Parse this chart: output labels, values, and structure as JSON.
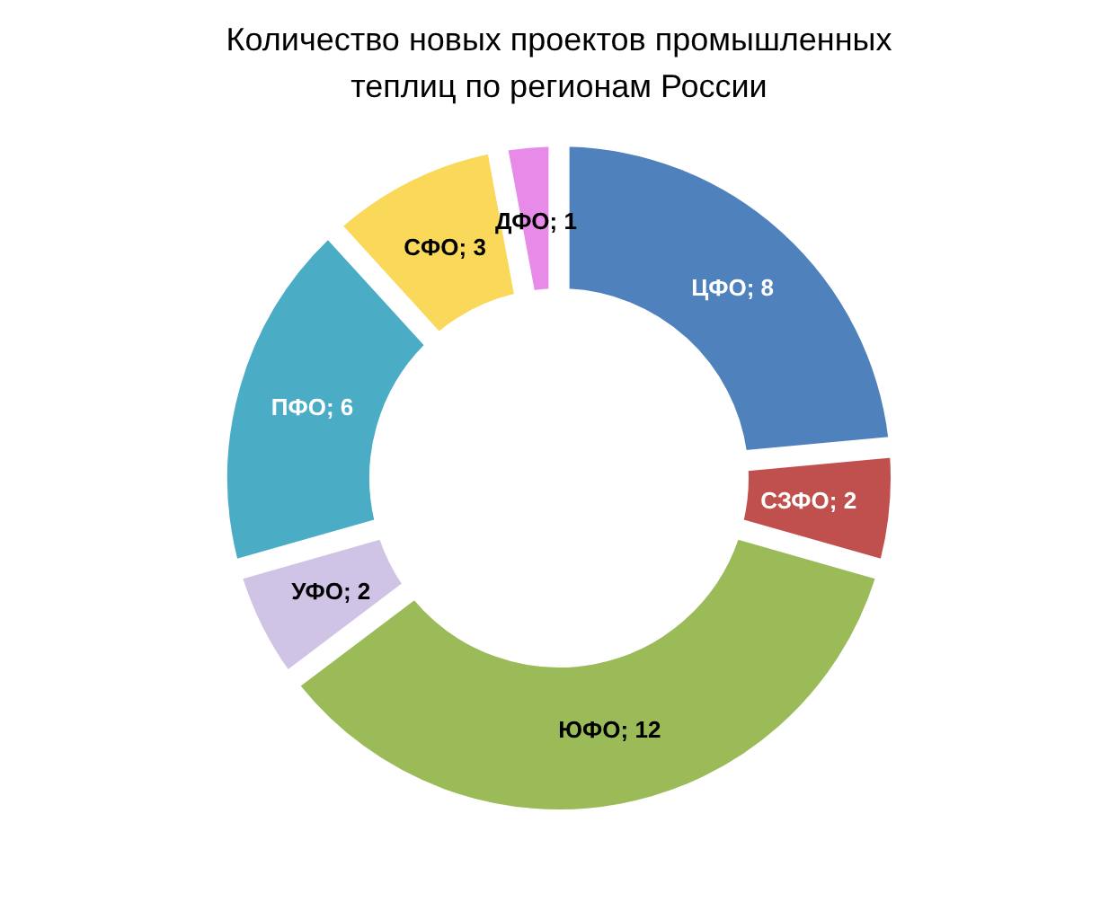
{
  "chart_data": {
    "type": "donut",
    "title": "Количество новых проектов промышленных\nтеплиц по регионам России",
    "categories": [
      "ЦФО",
      "СЗФО",
      "ЮФО",
      "УФО",
      "ПФО",
      "СФО",
      "ДФО"
    ],
    "values": [
      8,
      2,
      12,
      2,
      6,
      3,
      1
    ],
    "colors": [
      "#4f81bd",
      "#c0504d",
      "#9bbb59",
      "#cfc3e6",
      "#4bacc6",
      "#f9d85a",
      "#e88be8"
    ],
    "value_labels": [
      "; 8",
      "; 2",
      "; 12",
      "; 2",
      "; 6",
      "; 3",
      "; 1"
    ]
  }
}
